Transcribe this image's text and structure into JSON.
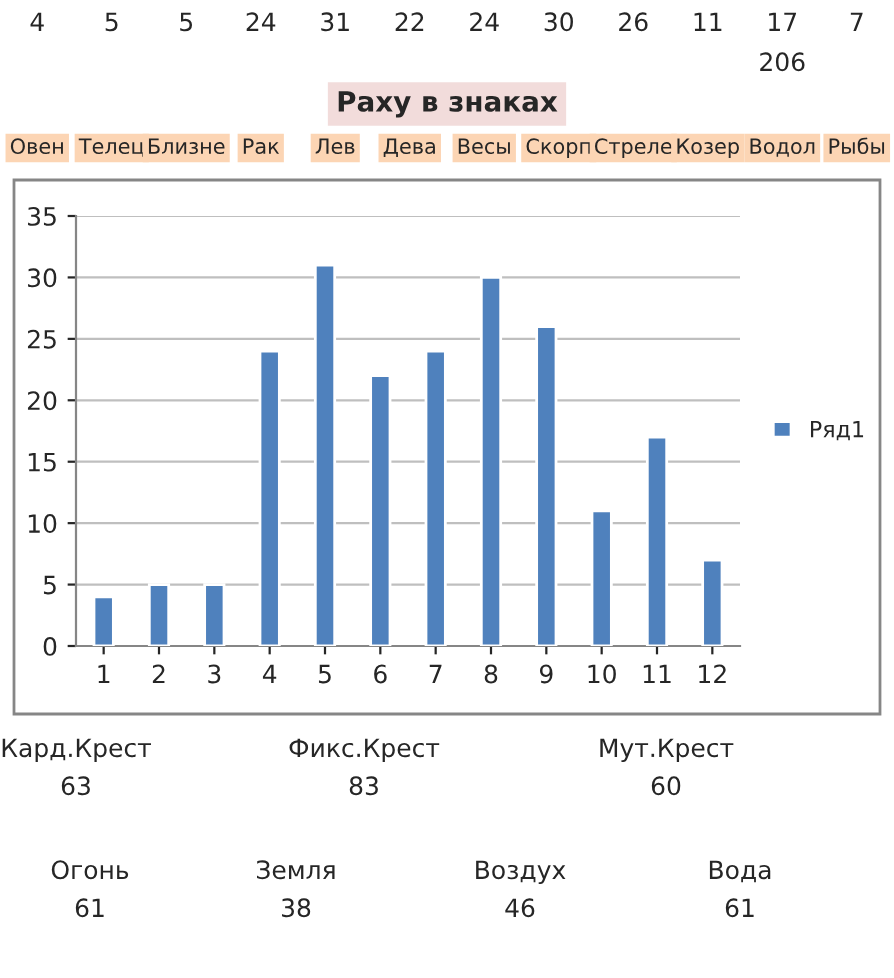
{
  "chart_data": {
    "type": "bar",
    "title": "Раху в знаках",
    "categories": [
      "1",
      "2",
      "3",
      "4",
      "5",
      "6",
      "7",
      "8",
      "9",
      "10",
      "11",
      "12"
    ],
    "series": [
      {
        "name": "Ряд1",
        "color": "#4f81bd",
        "values": [
          4,
          5,
          5,
          24,
          31,
          22,
          24,
          30,
          26,
          11,
          17,
          7
        ]
      }
    ],
    "ylim": [
      0,
      35
    ],
    "yticks": [
      0,
      5,
      10,
      15,
      20,
      25,
      30,
      35
    ],
    "grid": "y",
    "legend": "right",
    "annotations": [
      "4",
      "5",
      "5",
      "24",
      "31",
      "22",
      "24",
      "30",
      "26",
      "11",
      "17",
      "7",
      "206",
      "Овен",
      "Телец",
      "Близне",
      "Рак",
      "Лев",
      "Дева",
      "Весы",
      "Скорп",
      "Стреле",
      "Козер",
      "Водол",
      "Рыбы",
      "Кард.Крест",
      "63",
      "Фикс.Крест",
      "83",
      "Мут.Крест",
      "60",
      "Огонь",
      "61",
      "Земля",
      "38",
      "Воздух",
      "46",
      "Вода",
      "61"
    ]
  }
}
